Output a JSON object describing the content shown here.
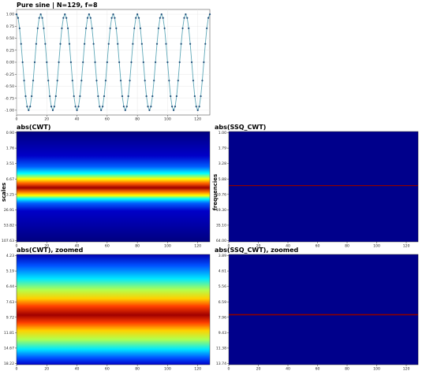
{
  "chart_data": [
    {
      "id": "sine",
      "type": "line",
      "title": "Pure sine | N=129, f=8",
      "xlim": [
        0,
        128
      ],
      "ylim": [
        -1.1,
        1.1
      ],
      "x_ticks": [
        0,
        20,
        40,
        60,
        80,
        100,
        120
      ],
      "y_ticks": [
        1.0,
        0.75,
        0.5,
        0.25,
        0.0,
        -0.25,
        -0.5,
        -0.75,
        -1.0
      ],
      "y_tick_labels": [
        "1.00",
        "0.75",
        "0.50",
        "0.25",
        "0.00",
        "-0.25",
        "-0.50",
        "-0.75",
        "-1.00"
      ],
      "series": [
        {
          "function": "cos(2*pi*8*n/128)",
          "n_points": 129,
          "markers": true,
          "line_color": "#5fa8b8",
          "marker_color": "#1f4e79"
        }
      ],
      "grid": true
    },
    {
      "id": "cwt",
      "type": "heatmap",
      "title": "abs(CWT)",
      "ylabel": "scales",
      "colormap": "jet",
      "x_ticks": [
        0,
        20,
        40,
        60,
        80,
        100,
        120
      ],
      "y_tick_labels": [
        "0.90",
        "1.76",
        "3.51",
        "6.67",
        "13.25",
        "26.91",
        "53.82",
        "107.63"
      ],
      "peak_scale": 9.72,
      "xlim": [
        0,
        128
      ]
    },
    {
      "id": "ssq",
      "type": "heatmap",
      "title": "abs(SSQ_CWT)",
      "ylabel": "frequencies",
      "colormap": "jet",
      "x_ticks": [
        0,
        20,
        40,
        60,
        80,
        100,
        120
      ],
      "y_tick_labels": [
        "1.00",
        "1.79",
        "3.28",
        "5.88",
        "10.76",
        "19.30",
        "35.10",
        "64.00"
      ],
      "peak_line_color": "#8b0000",
      "xlim": [
        0,
        128
      ]
    },
    {
      "id": "cwt_zoom",
      "type": "heatmap",
      "title": "abs(CWT), zoomed",
      "colormap": "jet",
      "x_ticks": [
        0,
        20,
        40,
        60,
        80,
        100,
        120
      ],
      "y_tick_labels": [
        "4.23",
        "5.19",
        "6.44",
        "7.63",
        "9.72",
        "11.81",
        "14.67",
        "18.22"
      ],
      "peak_scale": 9.72,
      "xlim": [
        0,
        128
      ]
    },
    {
      "id": "ssq_zoom",
      "type": "heatmap",
      "title": "abs(SSQ_CWT), zoomed",
      "colormap": "jet",
      "x_ticks": [
        0,
        20,
        40,
        60,
        80,
        100,
        120
      ],
      "y_tick_labels": [
        "3.89",
        "4.61",
        "5.56",
        "6.59",
        "7.96",
        "9.43",
        "11.38",
        "13.74"
      ],
      "peak_line_color": "#8b0000",
      "xlim": [
        0,
        128
      ]
    }
  ]
}
